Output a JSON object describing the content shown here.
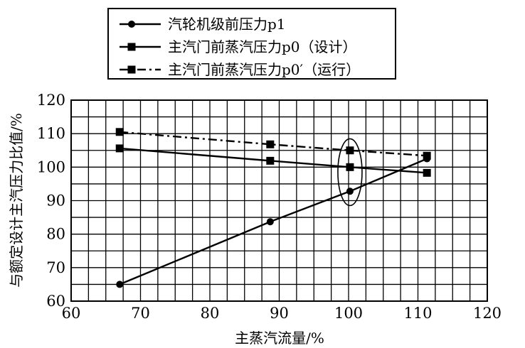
{
  "chart_data": {
    "type": "line",
    "title": "",
    "xlabel": "主蒸汽流量/%",
    "ylabel": "与额定设计主汽压力比值/%",
    "xlim": [
      60,
      120
    ],
    "ylim": [
      60,
      120
    ],
    "x_ticks": [
      "60",
      "70",
      "80",
      "90",
      "100",
      "110",
      "120"
    ],
    "y_ticks": [
      "60",
      "70",
      "80",
      "90",
      "100",
      "110",
      "120"
    ],
    "grid": true,
    "legend_position": "top-center",
    "series": [
      {
        "name": "汽轮机级前压力p1",
        "marker": "circle",
        "line_style": "solid",
        "x": [
          67,
          88.7,
          100.2,
          111.3
        ],
        "y": [
          65,
          83.7,
          92.8,
          102.5
        ]
      },
      {
        "name": "主汽门前蒸汽压力p0（设计）",
        "marker": "square",
        "line_style": "solid",
        "x": [
          67,
          88.7,
          100.2,
          111.3
        ],
        "y": [
          105.6,
          101.9,
          100,
          98.3
        ]
      },
      {
        "name": "主汽门前蒸汽压力p0′（运行）",
        "marker": "square",
        "line_style": "dash-dot",
        "x": [
          67,
          88.7,
          100.2,
          111.3
        ],
        "y": [
          110.5,
          106.8,
          105,
          103.4
        ]
      }
    ],
    "annotations": [
      {
        "type": "ellipse",
        "center": [
          100.2,
          98.5
        ],
        "description": "highlight at 100% flow"
      }
    ],
    "colors": {
      "line": "#000000",
      "grid": "#000000",
      "background": "#ffffff"
    }
  }
}
